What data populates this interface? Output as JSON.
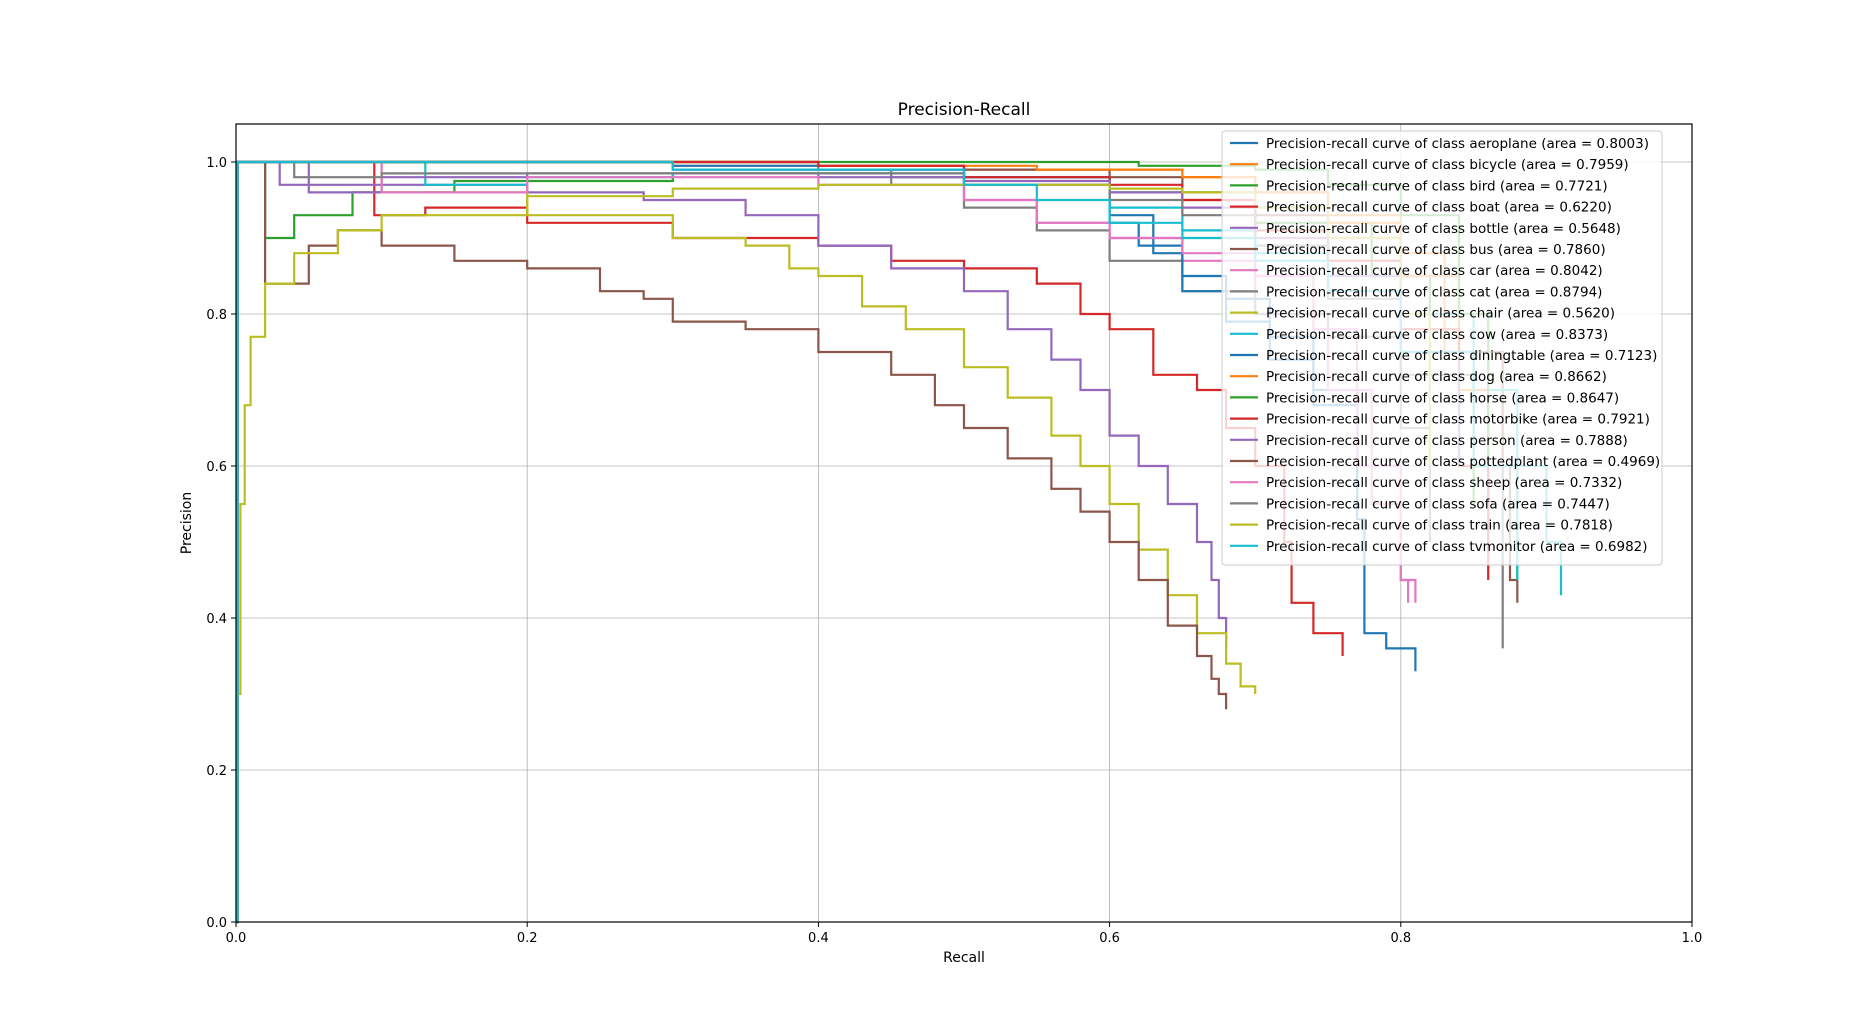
{
  "chart_data": {
    "type": "line",
    "title": "Precision-Recall",
    "xlabel": "Recall",
    "ylabel": "Precision",
    "xlim": [
      0.0,
      1.0
    ],
    "ylim": [
      0.0,
      1.05
    ],
    "grid": true,
    "legend_position": "upper-right",
    "xticks": [
      "0.0",
      "0.2",
      "0.4",
      "0.6",
      "0.8",
      "1.0"
    ],
    "yticks": [
      "0.0",
      "0.2",
      "0.4",
      "0.6",
      "0.8",
      "1.0"
    ],
    "series": [
      {
        "name": "Precision-recall curve of class aeroplane (area = 0.8003)",
        "color": "#1f77b4",
        "x": [
          0,
          0.001,
          0.02,
          0.1,
          0.3,
          0.5,
          0.6,
          0.62,
          0.65,
          0.68,
          0.71,
          0.74,
          0.77,
          0.775,
          0.79,
          0.81
        ],
        "y": [
          0,
          1,
          1,
          1,
          0.99,
          0.97,
          0.92,
          0.89,
          0.85,
          0.82,
          0.77,
          0.7,
          0.53,
          0.38,
          0.36,
          0.33
        ]
      },
      {
        "name": "Precision-recall curve of class bicycle (area = 0.7959)",
        "color": "#ff7f0e",
        "x": [
          0,
          0.001,
          0.1,
          0.3,
          0.5,
          0.65,
          0.7,
          0.75,
          0.8,
          0.83,
          0.86
        ],
        "y": [
          0,
          1,
          1,
          0.995,
          0.99,
          0.98,
          0.96,
          0.93,
          0.88,
          0.75,
          0.6
        ]
      },
      {
        "name": "Precision-recall curve of class bird (area = 0.7721)",
        "color": "#2ca02c",
        "x": [
          0,
          0.001,
          0.02,
          0.02,
          0.04,
          0.08,
          0.15,
          0.3,
          0.45,
          0.6,
          0.7,
          0.78,
          0.82,
          0.85
        ],
        "y": [
          0,
          1,
          1,
          0.9,
          0.93,
          0.96,
          0.975,
          0.985,
          0.98,
          0.96,
          0.92,
          0.85,
          0.72,
          0.55
        ]
      },
      {
        "name": "Precision-recall curve of class boat (area = 0.6220)",
        "color": "#d62728",
        "x": [
          0,
          0.001,
          0.095,
          0.095,
          0.13,
          0.2,
          0.3,
          0.4,
          0.45,
          0.5,
          0.55,
          0.58,
          0.6,
          0.63,
          0.66,
          0.68,
          0.7,
          0.72,
          0.725,
          0.74,
          0.76
        ],
        "y": [
          0,
          1,
          1,
          0.93,
          0.94,
          0.92,
          0.9,
          0.89,
          0.87,
          0.86,
          0.84,
          0.8,
          0.78,
          0.72,
          0.7,
          0.65,
          0.6,
          0.5,
          0.42,
          0.38,
          0.35
        ]
      },
      {
        "name": "Precision-recall curve of class bottle (area = 0.5648)",
        "color": "#9467bd",
        "x": [
          0,
          0.001,
          0.05,
          0.05,
          0.1,
          0.2,
          0.28,
          0.35,
          0.4,
          0.45,
          0.5,
          0.53,
          0.56,
          0.58,
          0.6,
          0.62,
          0.64,
          0.66,
          0.67,
          0.675,
          0.68
        ],
        "y": [
          0,
          1,
          1,
          0.96,
          0.97,
          0.96,
          0.95,
          0.93,
          0.89,
          0.86,
          0.83,
          0.78,
          0.74,
          0.7,
          0.64,
          0.6,
          0.55,
          0.5,
          0.45,
          0.4,
          0.36
        ]
      },
      {
        "name": "Precision-recall curve of class bus (area = 0.7860)",
        "color": "#8c564b",
        "x": [
          0,
          0.001,
          0.2,
          0.4,
          0.6,
          0.65,
          0.7,
          0.75,
          0.8,
          0.84,
          0.87,
          0.875,
          0.88
        ],
        "y": [
          0,
          1,
          1,
          0.99,
          0.98,
          0.95,
          0.93,
          0.9,
          0.85,
          0.75,
          0.6,
          0.45,
          0.42
        ]
      },
      {
        "name": "Precision-recall curve of class car (area = 0.8042)",
        "color": "#e377c2",
        "x": [
          0,
          0.001,
          0.1,
          0.3,
          0.5,
          0.55,
          0.6,
          0.65,
          0.7,
          0.75,
          0.78,
          0.8,
          0.81
        ],
        "y": [
          0,
          1,
          1,
          0.99,
          0.95,
          0.92,
          0.9,
          0.87,
          0.8,
          0.7,
          0.55,
          0.45,
          0.42
        ]
      },
      {
        "name": "Precision-recall curve of class cat (area = 0.8794)",
        "color": "#7f7f7f",
        "x": [
          0,
          0.001,
          0.2,
          0.4,
          0.45,
          0.5,
          0.55,
          0.6,
          0.65,
          0.7,
          0.75,
          0.8,
          0.85,
          0.87,
          0.87
        ],
        "y": [
          0,
          1,
          1,
          0.99,
          0.97,
          0.94,
          0.91,
          0.87,
          0.83,
          0.8,
          0.77,
          0.72,
          0.6,
          0.45,
          0.36
        ]
      },
      {
        "name": "Precision-recall curve of class chair (area = 0.5620)",
        "color": "#bcbd22",
        "x": [
          0,
          0.001,
          0.1,
          0.2,
          0.3,
          0.35,
          0.38,
          0.4,
          0.43,
          0.46,
          0.5,
          0.53,
          0.56,
          0.58,
          0.6,
          0.62,
          0.64,
          0.66,
          0.68,
          0.69,
          0.7
        ],
        "y": [
          0,
          1,
          0.96,
          0.93,
          0.9,
          0.89,
          0.86,
          0.85,
          0.81,
          0.78,
          0.73,
          0.69,
          0.64,
          0.6,
          0.55,
          0.49,
          0.43,
          0.38,
          0.34,
          0.31,
          0.3
        ]
      },
      {
        "name": "Precision-recall curve of class cow (area = 0.8373)",
        "color": "#17becf",
        "x": [
          0,
          0.001,
          0.13,
          0.13,
          0.2,
          0.3,
          0.5,
          0.6,
          0.65,
          0.7,
          0.75,
          0.8,
          0.85,
          0.88,
          0.9,
          0.91
        ],
        "y": [
          0,
          1,
          1,
          0.97,
          0.98,
          0.985,
          0.98,
          0.94,
          0.91,
          0.88,
          0.85,
          0.8,
          0.7,
          0.6,
          0.5,
          0.43
        ]
      },
      {
        "name": "Precision-recall curve of class diningtable (area = 0.7123)",
        "color": "#1f77b4",
        "x": [
          0,
          0.001,
          0.3,
          0.5,
          0.6,
          0.63,
          0.65,
          0.68,
          0.71,
          0.74,
          0.77
        ],
        "y": [
          0,
          1,
          0.995,
          0.98,
          0.93,
          0.88,
          0.83,
          0.79,
          0.74,
          0.68,
          0.55
        ]
      },
      {
        "name": "Precision-recall curve of class dog (area = 0.8662)",
        "color": "#ff7f0e",
        "x": [
          0,
          0.001,
          0.2,
          0.4,
          0.55,
          0.65,
          0.7,
          0.75,
          0.8,
          0.84,
          0.86
        ],
        "y": [
          0,
          1,
          1,
          0.995,
          0.99,
          0.98,
          0.96,
          0.92,
          0.85,
          0.7,
          0.55
        ]
      },
      {
        "name": "Precision-recall curve of class horse (area = 0.8647)",
        "color": "#2ca02c",
        "x": [
          0,
          0.001,
          0.3,
          0.56,
          0.62,
          0.7,
          0.75,
          0.8,
          0.84,
          0.86,
          0.88
        ],
        "y": [
          0,
          1,
          1,
          1,
          0.995,
          0.99,
          0.97,
          0.93,
          0.8,
          0.6,
          0.45
        ]
      },
      {
        "name": "Precision-recall curve of class motorbike (area = 0.7921)",
        "color": "#d62728",
        "x": [
          0,
          0.001,
          0.2,
          0.4,
          0.5,
          0.6,
          0.65,
          0.7,
          0.75,
          0.8,
          0.84,
          0.86
        ],
        "y": [
          0,
          1,
          1,
          0.995,
          0.98,
          0.97,
          0.95,
          0.91,
          0.87,
          0.78,
          0.6,
          0.45
        ]
      },
      {
        "name": "Precision-recall curve of class person (area = 0.7888)",
        "color": "#9467bd",
        "x": [
          0,
          0.001,
          0.03,
          0.1,
          0.2,
          0.3,
          0.4,
          0.5,
          0.6,
          0.65,
          0.7,
          0.75,
          0.8,
          0.84
        ],
        "y": [
          0,
          1,
          0.97,
          0.98,
          0.985,
          0.985,
          0.98,
          0.975,
          0.96,
          0.94,
          0.9,
          0.85,
          0.75,
          0.6
        ]
      },
      {
        "name": "Precision-recall curve of class pottedplant (area = 0.4969)",
        "color": "#8c564b",
        "x": [
          0,
          0.001,
          0.02,
          0.02,
          0.05,
          0.07,
          0.1,
          0.15,
          0.2,
          0.25,
          0.28,
          0.3,
          0.35,
          0.38,
          0.4,
          0.45,
          0.48,
          0.5,
          0.53,
          0.56,
          0.58,
          0.6,
          0.62,
          0.64,
          0.66,
          0.67,
          0.675,
          0.68
        ],
        "y": [
          0,
          1,
          1,
          0.84,
          0.89,
          0.91,
          0.89,
          0.87,
          0.86,
          0.83,
          0.82,
          0.79,
          0.78,
          0.78,
          0.75,
          0.72,
          0.68,
          0.65,
          0.61,
          0.57,
          0.54,
          0.5,
          0.45,
          0.39,
          0.35,
          0.32,
          0.3,
          0.28
        ]
      },
      {
        "name": "Precision-recall curve of class sheep (area = 0.7332)",
        "color": "#e377c2",
        "x": [
          0,
          0.001,
          0.1,
          0.2,
          0.4,
          0.5,
          0.55,
          0.6,
          0.65,
          0.7,
          0.74,
          0.77,
          0.8,
          0.805
        ],
        "y": [
          0,
          1,
          0.96,
          0.98,
          0.97,
          0.95,
          0.92,
          0.9,
          0.88,
          0.85,
          0.78,
          0.6,
          0.45,
          0.42
        ]
      },
      {
        "name": "Precision-recall curve of class sofa (area = 0.7447)",
        "color": "#7f7f7f",
        "x": [
          0,
          0.001,
          0.04,
          0.04,
          0.1,
          0.3,
          0.5,
          0.6,
          0.65,
          0.7,
          0.75,
          0.8,
          0.82
        ],
        "y": [
          0,
          1,
          1,
          0.98,
          0.985,
          0.985,
          0.97,
          0.95,
          0.93,
          0.89,
          0.82,
          0.65,
          0.5
        ]
      },
      {
        "name": "Precision-recall curve of class train (area = 0.7818)",
        "color": "#bcbd22",
        "x": [
          0,
          0.001,
          0.003,
          0.006,
          0.01,
          0.02,
          0.04,
          0.07,
          0.1,
          0.2,
          0.3,
          0.4,
          0.5,
          0.6,
          0.65,
          0.7,
          0.75,
          0.8,
          0.82
        ],
        "y": [
          0,
          0.3,
          0.55,
          0.68,
          0.77,
          0.84,
          0.88,
          0.91,
          0.93,
          0.955,
          0.965,
          0.97,
          0.97,
          0.965,
          0.96,
          0.94,
          0.9,
          0.8,
          0.6
        ]
      },
      {
        "name": "Precision-recall curve of class tvmonitor (area = 0.6982)",
        "color": "#17becf",
        "x": [
          0,
          0.001,
          0.1,
          0.3,
          0.5,
          0.55,
          0.6,
          0.65,
          0.7,
          0.75,
          0.8,
          0.85,
          0.88
        ],
        "y": [
          0,
          1,
          1,
          0.99,
          0.97,
          0.95,
          0.92,
          0.9,
          0.87,
          0.83,
          0.75,
          0.6,
          0.45
        ]
      }
    ]
  }
}
